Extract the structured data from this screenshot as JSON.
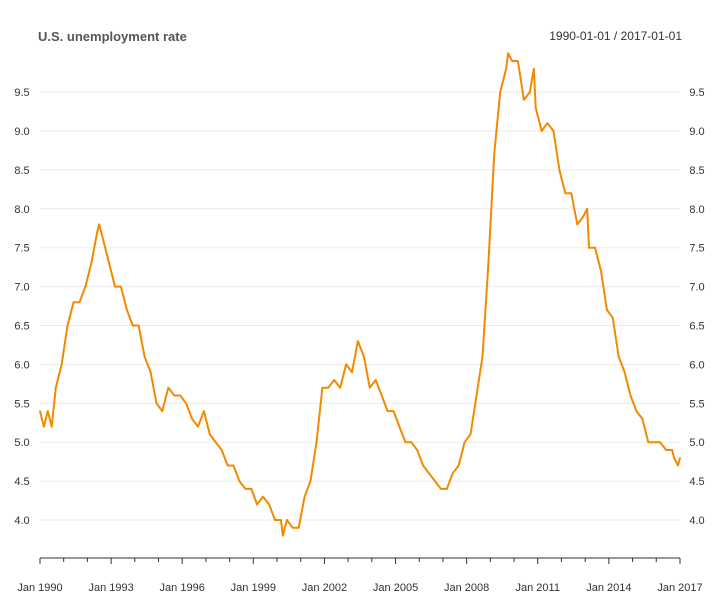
{
  "chart_title": "U.S. unemployment rate",
  "range_label": "1990-01-01 / 2017-01-01",
  "colors": {
    "line": "#f28a00",
    "grid": "#ebebeb",
    "axis": "#333333",
    "tick_text": "#333333"
  },
  "chart_data": {
    "type": "line",
    "title": "U.S. unemployment rate",
    "subtitle": "1990-01-01 / 2017-01-01",
    "xlabel": "",
    "ylabel": "",
    "xlim": [
      "1990-01-01",
      "2017-01-01"
    ],
    "ylim": [
      3.75,
      10.0
    ],
    "grid": true,
    "legend": "none",
    "y_ticks": [
      "4.0",
      "4.5",
      "5.0",
      "5.5",
      "6.0",
      "6.5",
      "7.0",
      "7.5",
      "8.0",
      "8.5",
      "9.0",
      "9.5"
    ],
    "x_ticks": [
      "Jan 1990",
      "Jan 1993",
      "Jan 1996",
      "Jan 1999",
      "Jan 2002",
      "Jan 2005",
      "Jan 2008",
      "Jan 2011",
      "Jan 2014",
      "Jan 2017"
    ],
    "series": [
      {
        "values": [
          [
            "1990-01",
            5.4
          ],
          [
            "1990-03",
            5.2
          ],
          [
            "1990-05",
            5.4
          ],
          [
            "1990-07",
            5.2
          ],
          [
            "1990-09",
            5.7
          ],
          [
            "1990-12",
            6.0
          ],
          [
            "1991-03",
            6.5
          ],
          [
            "1991-06",
            6.8
          ],
          [
            "1991-09",
            6.8
          ],
          [
            "1991-12",
            7.0
          ],
          [
            "1992-03",
            7.3
          ],
          [
            "1992-06",
            7.7
          ],
          [
            "1992-07",
            7.8
          ],
          [
            "1992-09",
            7.6
          ],
          [
            "1992-12",
            7.3
          ],
          [
            "1993-03",
            7.0
          ],
          [
            "1993-06",
            7.0
          ],
          [
            "1993-09",
            6.7
          ],
          [
            "1993-12",
            6.5
          ],
          [
            "1994-03",
            6.5
          ],
          [
            "1994-06",
            6.1
          ],
          [
            "1994-09",
            5.9
          ],
          [
            "1994-12",
            5.5
          ],
          [
            "1995-03",
            5.4
          ],
          [
            "1995-06",
            5.7
          ],
          [
            "1995-09",
            5.6
          ],
          [
            "1995-12",
            5.6
          ],
          [
            "1996-03",
            5.5
          ],
          [
            "1996-06",
            5.3
          ],
          [
            "1996-09",
            5.2
          ],
          [
            "1996-12",
            5.4
          ],
          [
            "1997-03",
            5.1
          ],
          [
            "1997-06",
            5.0
          ],
          [
            "1997-09",
            4.9
          ],
          [
            "1997-12",
            4.7
          ],
          [
            "1998-03",
            4.7
          ],
          [
            "1998-06",
            4.5
          ],
          [
            "1998-09",
            4.4
          ],
          [
            "1998-12",
            4.4
          ],
          [
            "1999-03",
            4.2
          ],
          [
            "1999-06",
            4.3
          ],
          [
            "1999-09",
            4.2
          ],
          [
            "1999-12",
            4.0
          ],
          [
            "2000-03",
            4.0
          ],
          [
            "2000-04",
            3.8
          ],
          [
            "2000-06",
            4.0
          ],
          [
            "2000-09",
            3.9
          ],
          [
            "2000-12",
            3.9
          ],
          [
            "2001-03",
            4.3
          ],
          [
            "2001-06",
            4.5
          ],
          [
            "2001-09",
            5.0
          ],
          [
            "2001-12",
            5.7
          ],
          [
            "2002-03",
            5.7
          ],
          [
            "2002-06",
            5.8
          ],
          [
            "2002-09",
            5.7
          ],
          [
            "2002-12",
            6.0
          ],
          [
            "2003-03",
            5.9
          ],
          [
            "2003-06",
            6.3
          ],
          [
            "2003-09",
            6.1
          ],
          [
            "2003-12",
            5.7
          ],
          [
            "2004-03",
            5.8
          ],
          [
            "2004-06",
            5.6
          ],
          [
            "2004-09",
            5.4
          ],
          [
            "2004-12",
            5.4
          ],
          [
            "2005-03",
            5.2
          ],
          [
            "2005-06",
            5.0
          ],
          [
            "2005-09",
            5.0
          ],
          [
            "2005-12",
            4.9
          ],
          [
            "2006-03",
            4.7
          ],
          [
            "2006-06",
            4.6
          ],
          [
            "2006-09",
            4.5
          ],
          [
            "2006-12",
            4.4
          ],
          [
            "2007-03",
            4.4
          ],
          [
            "2007-06",
            4.6
          ],
          [
            "2007-09",
            4.7
          ],
          [
            "2007-12",
            5.0
          ],
          [
            "2008-03",
            5.1
          ],
          [
            "2008-06",
            5.6
          ],
          [
            "2008-09",
            6.1
          ],
          [
            "2008-12",
            7.3
          ],
          [
            "2009-03",
            8.7
          ],
          [
            "2009-06",
            9.5
          ],
          [
            "2009-09",
            9.8
          ],
          [
            "2009-10",
            10.0
          ],
          [
            "2009-12",
            9.9
          ],
          [
            "2010-03",
            9.9
          ],
          [
            "2010-06",
            9.4
          ],
          [
            "2010-09",
            9.5
          ],
          [
            "2010-11",
            9.8
          ],
          [
            "2010-12",
            9.3
          ],
          [
            "2011-03",
            9.0
          ],
          [
            "2011-06",
            9.1
          ],
          [
            "2011-09",
            9.0
          ],
          [
            "2011-12",
            8.5
          ],
          [
            "2012-03",
            8.2
          ],
          [
            "2012-06",
            8.2
          ],
          [
            "2012-09",
            7.8
          ],
          [
            "2012-12",
            7.9
          ],
          [
            "2013-02",
            8.0
          ],
          [
            "2013-03",
            7.5
          ],
          [
            "2013-06",
            7.5
          ],
          [
            "2013-09",
            7.2
          ],
          [
            "2013-12",
            6.7
          ],
          [
            "2014-03",
            6.6
          ],
          [
            "2014-06",
            6.1
          ],
          [
            "2014-09",
            5.9
          ],
          [
            "2014-12",
            5.6
          ],
          [
            "2015-03",
            5.4
          ],
          [
            "2015-06",
            5.3
          ],
          [
            "2015-09",
            5.0
          ],
          [
            "2015-12",
            5.0
          ],
          [
            "2016-03",
            5.0
          ],
          [
            "2016-06",
            4.9
          ],
          [
            "2016-09",
            4.9
          ],
          [
            "2016-10",
            4.8
          ],
          [
            "2016-12",
            4.7
          ],
          [
            "2017-01",
            4.8
          ]
        ]
      }
    ]
  }
}
